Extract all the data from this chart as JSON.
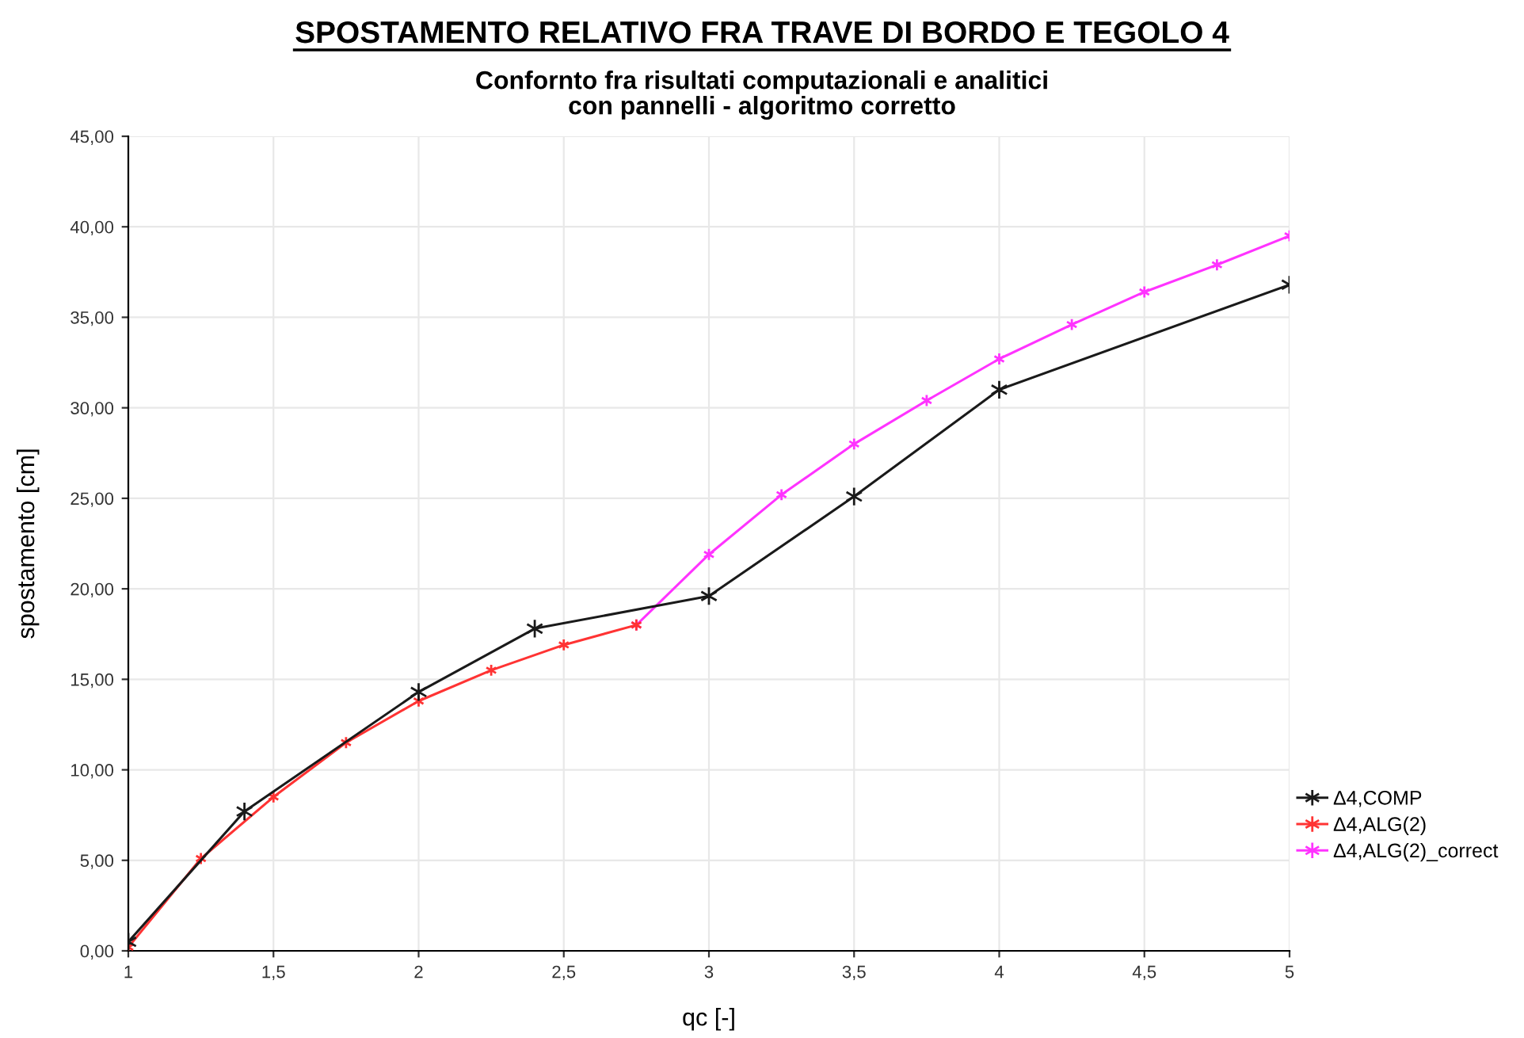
{
  "chart_data": {
    "type": "line",
    "title": "SPOSTAMENTO RELATIVO FRA TRAVE DI BORDO E TEGOLO 4",
    "subtitle": "Confornto fra risultati computazionali e analitici\ncon pannelli - algoritmo corretto",
    "xlabel": "qc [-]",
    "ylabel": "spostamento [cm]",
    "series": [
      {
        "name": "Δ4,COMP",
        "color": "#1a1a1a",
        "x": [
          1,
          1.4,
          2,
          2.4,
          3,
          3.5,
          4,
          5
        ],
        "values": [
          0.5,
          7.7,
          14.3,
          17.8,
          19.6,
          25.1,
          31.0,
          36.8
        ]
      },
      {
        "name": "Δ4,ALG(2)",
        "color": "#ff3333",
        "x": [
          1,
          1.25,
          1.5,
          1.75,
          2,
          2.25,
          2.5,
          2.75
        ],
        "values": [
          0.2,
          5.1,
          8.5,
          11.5,
          13.8,
          15.5,
          16.9,
          18.0
        ]
      },
      {
        "name": "Δ4,ALG(2)_correct",
        "color": "#ff33ff",
        "x": [
          2.75,
          3,
          3.25,
          3.5,
          3.75,
          4,
          4.25,
          4.5,
          4.75,
          5
        ],
        "values": [
          18.0,
          21.9,
          25.2,
          28.0,
          30.4,
          32.7,
          34.6,
          36.4,
          37.9,
          39.5
        ]
      }
    ],
    "xlim": [
      1,
      5
    ],
    "xticks": [
      1,
      {
        "value": 1.5,
        "label": "1,5"
      },
      2,
      {
        "value": 2.5,
        "label": "2,5"
      },
      3,
      {
        "value": 3.5,
        "label": "3,5"
      },
      4,
      {
        "value": 4.5,
        "label": "4,5"
      },
      5
    ],
    "ylim": [
      0,
      45
    ],
    "yticks": [
      {
        "value": 0,
        "label": "0,00"
      },
      {
        "value": 5,
        "label": "5,00"
      },
      {
        "value": 10,
        "label": "10,00"
      },
      {
        "value": 15,
        "label": "15,00"
      },
      {
        "value": 20,
        "label": "20,00"
      },
      {
        "value": 25,
        "label": "25,00"
      },
      {
        "value": 30,
        "label": "30,00"
      },
      {
        "value": 35,
        "label": "35,00"
      },
      {
        "value": 40,
        "label": "40,00"
      },
      {
        "value": 45,
        "label": "45,00"
      }
    ],
    "grid": true,
    "legend": "bottom right",
    "marker": "cross",
    "line_style": "solid"
  }
}
